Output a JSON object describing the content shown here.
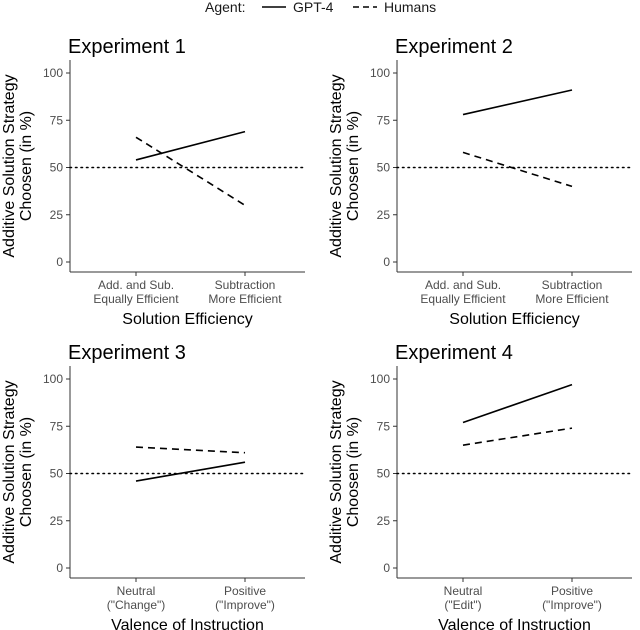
{
  "legend": {
    "title": "Agent:",
    "entries": [
      {
        "label": "GPT-4",
        "style": "solid"
      },
      {
        "label": "Humans",
        "style": "dashed"
      }
    ]
  },
  "colors": {
    "line": "#000000",
    "tick": "#4d4d4d",
    "axis": "#333333"
  },
  "chart_data": [
    {
      "type": "line",
      "title": "Experiment 1",
      "xlabel": "Solution Efficiency",
      "ylabel": [
        "Additive Solution Strategy",
        "Choosen (in %)"
      ],
      "categories": [
        [
          "Add. and Sub.",
          "Equally Efficient"
        ],
        [
          "Subtraction",
          "More Efficient"
        ]
      ],
      "yticks": [
        0,
        25,
        50,
        75,
        100
      ],
      "ylim": [
        0,
        100
      ],
      "reference_line": 50,
      "series": [
        {
          "name": "GPT-4",
          "values": [
            54,
            69
          ]
        },
        {
          "name": "Humans",
          "values": [
            66,
            30
          ]
        }
      ]
    },
    {
      "type": "line",
      "title": "Experiment 2",
      "xlabel": "Solution Efficiency",
      "ylabel": [
        "Additive Solution Strategy",
        "Choosen (in %)"
      ],
      "categories": [
        [
          "Add. and Sub.",
          "Equally Efficient"
        ],
        [
          "Subtraction",
          "More Efficient"
        ]
      ],
      "yticks": [
        0,
        25,
        50,
        75,
        100
      ],
      "ylim": [
        0,
        100
      ],
      "reference_line": 50,
      "series": [
        {
          "name": "GPT-4",
          "values": [
            78,
            91
          ]
        },
        {
          "name": "Humans",
          "values": [
            58,
            40
          ]
        }
      ]
    },
    {
      "type": "line",
      "title": "Experiment 3",
      "xlabel": "Valence of Instruction",
      "ylabel": [
        "Additive Solution Strategy",
        "Choosen (in %)"
      ],
      "categories": [
        [
          "Neutral",
          "(\"Change\")"
        ],
        [
          "Positive",
          "(\"Improve\")"
        ]
      ],
      "yticks": [
        0,
        25,
        50,
        75,
        100
      ],
      "ylim": [
        0,
        100
      ],
      "reference_line": 50,
      "series": [
        {
          "name": "GPT-4",
          "values": [
            46,
            56
          ]
        },
        {
          "name": "Humans",
          "values": [
            64,
            61
          ]
        }
      ]
    },
    {
      "type": "line",
      "title": "Experiment 4",
      "xlabel": "Valence of Instruction",
      "ylabel": [
        "Additive Solution Strategy",
        "Choosen (in %)"
      ],
      "categories": [
        [
          "Neutral",
          "(\"Edit\")"
        ],
        [
          "Positive",
          "(\"Improve\")"
        ]
      ],
      "yticks": [
        0,
        25,
        50,
        75,
        100
      ],
      "ylim": [
        0,
        100
      ],
      "reference_line": 50,
      "series": [
        {
          "name": "GPT-4",
          "values": [
            77,
            97
          ]
        },
        {
          "name": "Humans",
          "values": [
            65,
            74
          ]
        }
      ]
    }
  ]
}
